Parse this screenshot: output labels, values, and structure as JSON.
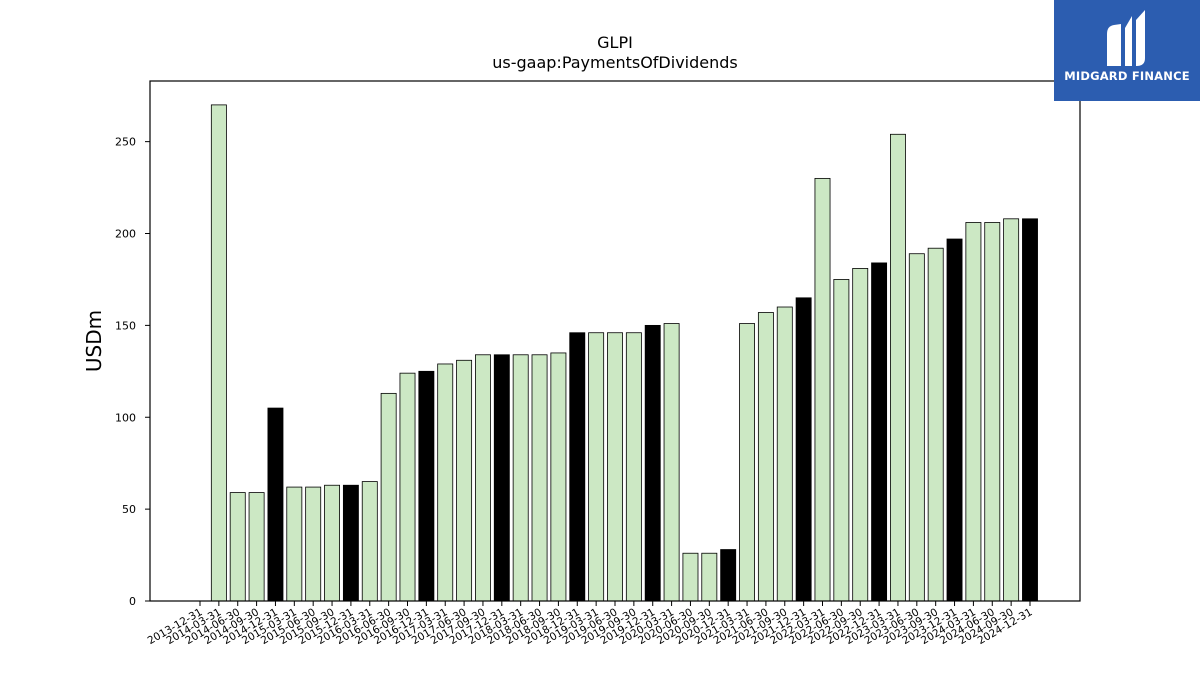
{
  "chart_data": {
    "type": "bar",
    "title": "GLPI",
    "subtitle": "us-gaap:PaymentsOfDividends",
    "xlabel": "",
    "ylabel": "USDm",
    "ylim": [
      0,
      283
    ],
    "yticks": [
      0,
      50,
      100,
      150,
      200,
      250
    ],
    "colors": {
      "quarter": "#cce8c4",
      "year_end": "#000000",
      "edge": "#000000"
    },
    "categories": [
      "2013-12-31",
      "2014-03-31",
      "2014-06-30",
      "2014-09-30",
      "2014-12-31",
      "2015-03-31",
      "2015-06-30",
      "2015-09-30",
      "2015-12-31",
      "2016-03-31",
      "2016-06-30",
      "2016-09-30",
      "2016-12-31",
      "2017-03-31",
      "2017-06-30",
      "2017-09-30",
      "2017-12-31",
      "2018-03-31",
      "2018-06-30",
      "2018-09-30",
      "2018-12-31",
      "2019-03-31",
      "2019-06-30",
      "2019-09-30",
      "2019-12-31",
      "2020-03-31",
      "2020-06-30",
      "2020-09-30",
      "2020-12-31",
      "2021-03-31",
      "2021-06-30",
      "2021-09-30",
      "2021-12-31",
      "2022-03-31",
      "2022-06-30",
      "2022-09-30",
      "2022-12-31",
      "2023-03-31",
      "2023-06-30",
      "2023-09-30",
      "2023-12-31",
      "2024-03-31",
      "2024-06-30",
      "2024-09-30",
      "2024-12-31"
    ],
    "values": [
      null,
      270,
      59,
      59,
      105,
      62,
      62,
      63,
      63,
      65,
      113,
      124,
      125,
      129,
      131,
      134,
      134,
      134,
      134,
      135,
      146,
      146,
      146,
      146,
      150,
      151,
      26,
      26,
      28,
      151,
      157,
      160,
      165,
      230,
      175,
      181,
      184,
      254,
      189,
      192,
      197,
      206,
      206,
      208,
      208
    ],
    "year_end": [
      false,
      false,
      false,
      false,
      true,
      false,
      false,
      false,
      true,
      false,
      false,
      false,
      true,
      false,
      false,
      false,
      true,
      false,
      false,
      false,
      true,
      false,
      false,
      false,
      true,
      false,
      false,
      false,
      true,
      false,
      false,
      false,
      true,
      false,
      false,
      false,
      true,
      false,
      false,
      false,
      true,
      false,
      false,
      false,
      true
    ]
  },
  "logo": {
    "text": "MIDGARD FINANCE",
    "color": "#2c5db0"
  }
}
